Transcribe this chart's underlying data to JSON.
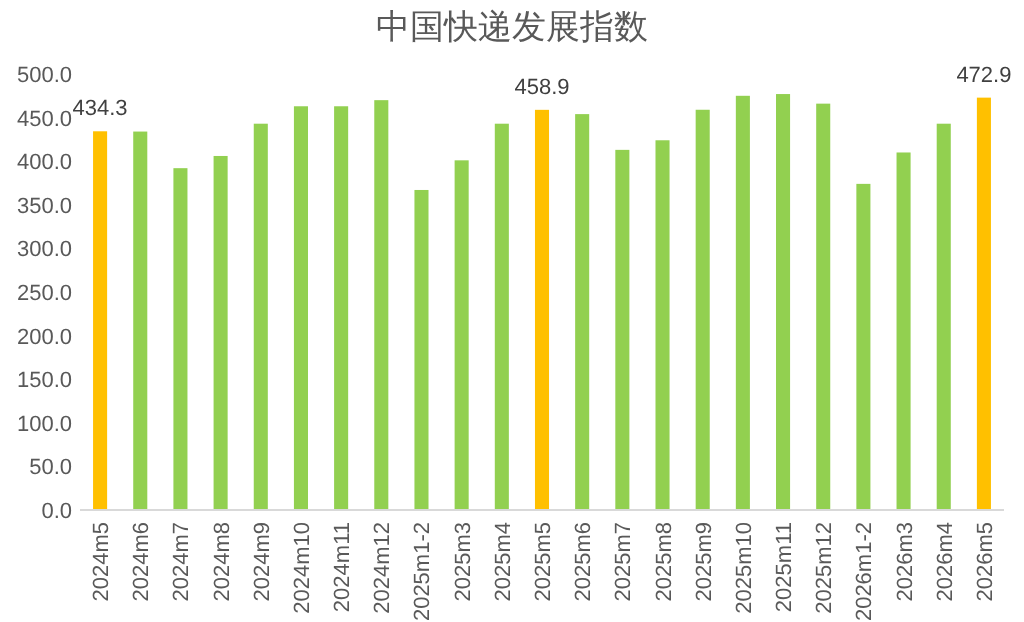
{
  "chart_data": {
    "type": "bar",
    "title": "中国快递发展指数",
    "categories": [
      "2024m5",
      "2024m6",
      "2024m7",
      "2024m8",
      "2024m9",
      "2024m10",
      "2024m11",
      "2024m12",
      "2025m1-2",
      "2025m3",
      "2025m4",
      "2025m5",
      "2025m6",
      "2025m7",
      "2025m8",
      "2025m9",
      "2025m10",
      "2025m11",
      "2025m12",
      "2026m1-2",
      "2026m3",
      "2026m4",
      "2026m5"
    ],
    "values": [
      434.3,
      434,
      392,
      406,
      443,
      463,
      463,
      470,
      367,
      401,
      443,
      458.9,
      454,
      413,
      424,
      459,
      475,
      477,
      466,
      374,
      410,
      443,
      472.9
    ],
    "value_labels": [
      "434.3",
      null,
      null,
      null,
      null,
      null,
      null,
      null,
      null,
      null,
      null,
      "458.9",
      null,
      null,
      null,
      null,
      null,
      null,
      null,
      null,
      null,
      null,
      "472.9"
    ],
    "colors": [
      "#ffc000",
      "#92d050",
      "#92d050",
      "#92d050",
      "#92d050",
      "#92d050",
      "#92d050",
      "#92d050",
      "#92d050",
      "#92d050",
      "#92d050",
      "#ffc000",
      "#92d050",
      "#92d050",
      "#92d050",
      "#92d050",
      "#92d050",
      "#92d050",
      "#92d050",
      "#92d050",
      "#92d050",
      "#92d050",
      "#ffc000"
    ],
    "ylim": [
      0,
      500
    ],
    "yticks": [
      {
        "value": 0,
        "label": "0.0"
      },
      {
        "value": 50,
        "label": "50.0"
      },
      {
        "value": 100,
        "label": "100.0"
      },
      {
        "value": 150,
        "label": "150.0"
      },
      {
        "value": 200,
        "label": "200.0"
      },
      {
        "value": 250,
        "label": "250.0"
      },
      {
        "value": 300,
        "label": "300.0"
      },
      {
        "value": 350,
        "label": "350.0"
      },
      {
        "value": 400,
        "label": "400.0"
      },
      {
        "value": 450,
        "label": "450.0"
      },
      {
        "value": 500,
        "label": "500.0"
      }
    ],
    "grid": false
  }
}
